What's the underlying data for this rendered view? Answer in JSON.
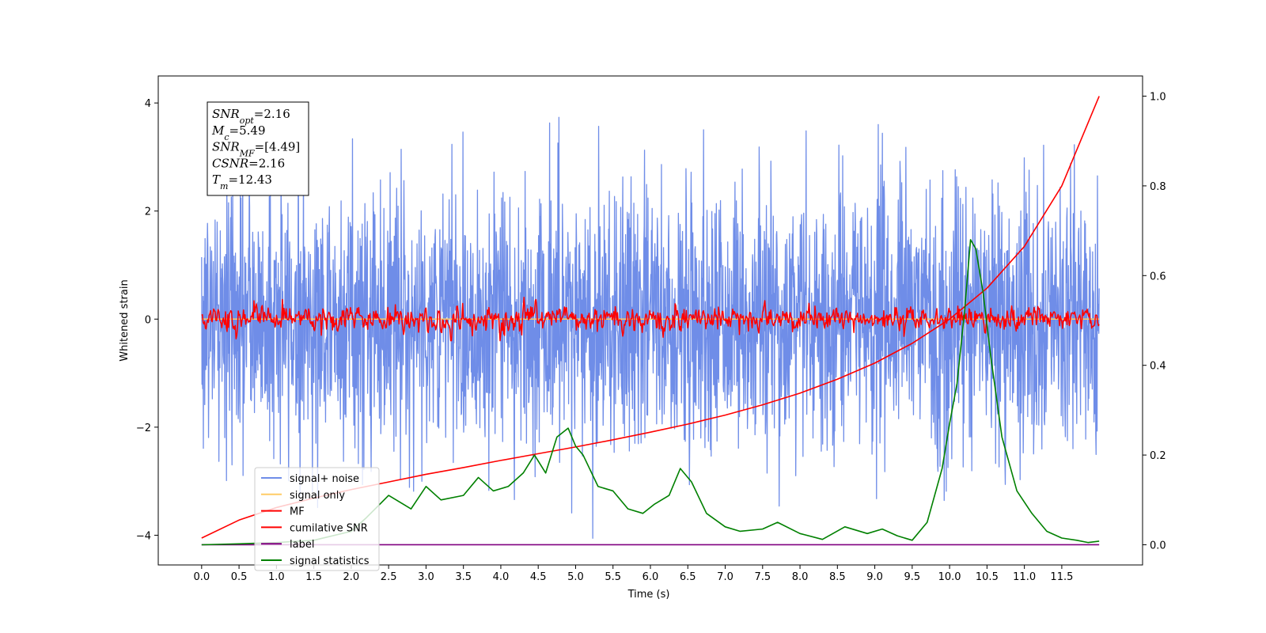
{
  "chart_data": {
    "type": "line",
    "xlabel": "Time (s)",
    "ylabel": "Whitened strain",
    "xlim": [
      -0.58,
      12.58
    ],
    "ylim": [
      -4.55,
      4.5
    ],
    "y2lim": [
      -0.045,
      1.045
    ],
    "x_ticks": [
      0.0,
      0.5,
      1.0,
      1.5,
      2.0,
      2.5,
      3.0,
      3.5,
      4.0,
      4.5,
      5.0,
      5.5,
      6.0,
      6.5,
      7.0,
      7.5,
      8.0,
      8.5,
      9.0,
      9.5,
      10.0,
      10.5,
      11.0,
      11.5
    ],
    "x_tick_labels": [
      "0.0",
      "0.5",
      "1.0",
      "1.5",
      "2.0",
      "2.5",
      "3.0",
      "3.5",
      "4.0",
      "4.5",
      "5.0",
      "5.5",
      "6.0",
      "6.5",
      "7.0",
      "7.5",
      "8.0",
      "8.5",
      "9.0",
      "9.5",
      "10.0",
      "10.5",
      "11.0",
      "11.5"
    ],
    "y_ticks": [
      -4,
      -2,
      0,
      2,
      4
    ],
    "y_tick_labels": [
      "−4",
      "−2",
      "0",
      "2",
      "4"
    ],
    "y2_ticks": [
      0.0,
      0.2,
      0.4,
      0.6,
      0.8,
      1.0
    ],
    "y2_tick_labels": [
      "0.0",
      "0.2",
      "0.4",
      "0.6",
      "0.8",
      "1.0"
    ],
    "grid": false,
    "legend_position": "lower-left",
    "time_range": [
      0.0,
      12.0
    ],
    "noise_amplitude": {
      "core": 1.3,
      "peak_max": 4.1
    },
    "mf_amplitude": {
      "core": 0.3,
      "peak_max": 1.0
    },
    "series": [
      {
        "name": "signal+ noise",
        "color": "#6f8de8",
        "axis": "left",
        "kind": "noise"
      },
      {
        "name": "signal only",
        "color": "#ffcc66",
        "axis": "left",
        "kind": "flat",
        "value": 0.0
      },
      {
        "name": "MF",
        "color": "#ff0000",
        "axis": "left",
        "kind": "noise"
      },
      {
        "name": "cumilative SNR",
        "color": "#ff0000",
        "axis": "right",
        "x": [
          0.0,
          0.5,
          1.0,
          1.5,
          2.0,
          2.5,
          3.0,
          3.5,
          4.0,
          4.5,
          5.0,
          5.5,
          6.0,
          6.5,
          7.0,
          7.5,
          8.0,
          8.5,
          9.0,
          9.5,
          10.0,
          10.5,
          11.0,
          11.5,
          12.0
        ],
        "values": [
          0.015,
          0.055,
          0.083,
          0.104,
          0.123,
          0.14,
          0.157,
          0.172,
          0.188,
          0.203,
          0.218,
          0.234,
          0.251,
          0.269,
          0.289,
          0.312,
          0.338,
          0.369,
          0.405,
          0.449,
          0.503,
          0.572,
          0.665,
          0.8,
          1.0
        ]
      },
      {
        "name": "label",
        "color": "#800080",
        "axis": "right",
        "kind": "flat",
        "value": 0.0
      },
      {
        "name": "signal statistics",
        "color": "#008000",
        "axis": "right",
        "x": [
          0.0,
          0.5,
          1.0,
          1.5,
          2.0,
          2.2,
          2.5,
          2.8,
          3.0,
          3.2,
          3.5,
          3.7,
          3.9,
          4.1,
          4.3,
          4.45,
          4.6,
          4.75,
          4.9,
          5.0,
          5.1,
          5.3,
          5.5,
          5.7,
          5.9,
          6.05,
          6.25,
          6.4,
          6.55,
          6.75,
          7.0,
          7.2,
          7.5,
          7.7,
          8.0,
          8.3,
          8.6,
          8.9,
          9.1,
          9.3,
          9.5,
          9.7,
          9.8,
          9.9,
          10.0,
          10.1,
          10.2,
          10.28,
          10.35,
          10.45,
          10.55,
          10.7,
          10.9,
          11.1,
          11.3,
          11.5,
          11.7,
          11.85,
          12.0
        ],
        "values": [
          0.0,
          0.002,
          0.005,
          0.01,
          0.03,
          0.06,
          0.11,
          0.08,
          0.13,
          0.1,
          0.11,
          0.15,
          0.12,
          0.13,
          0.16,
          0.2,
          0.16,
          0.24,
          0.26,
          0.22,
          0.2,
          0.13,
          0.12,
          0.08,
          0.07,
          0.09,
          0.11,
          0.17,
          0.14,
          0.07,
          0.04,
          0.03,
          0.035,
          0.05,
          0.025,
          0.012,
          0.04,
          0.025,
          0.035,
          0.02,
          0.01,
          0.05,
          0.11,
          0.17,
          0.27,
          0.36,
          0.52,
          0.68,
          0.66,
          0.56,
          0.42,
          0.24,
          0.12,
          0.07,
          0.03,
          0.015,
          0.01,
          0.005,
          0.008
        ]
      }
    ],
    "annotation_box": {
      "lines": [
        {
          "base": "SNR",
          "sub": "opt",
          "value": "=2.16"
        },
        {
          "base": "M",
          "sub": "c",
          "value": "=5.49"
        },
        {
          "base": "SNR",
          "sub": "MF",
          "value": "=[4.49]"
        },
        {
          "base": "CSNR",
          "sub": "",
          "value": "=2.16"
        },
        {
          "base": "T",
          "sub": "m",
          "value": "=12.43"
        }
      ]
    }
  }
}
